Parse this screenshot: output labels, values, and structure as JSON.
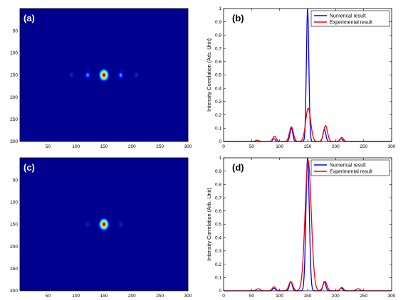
{
  "panels": [
    {
      "label": "(a)",
      "type": "heatmap"
    },
    {
      "label": "(b)",
      "type": "line"
    },
    {
      "label": "(c)",
      "type": "heatmap"
    },
    {
      "label": "(d)",
      "type": "line"
    }
  ],
  "chart_data": [
    {
      "type": "heatmap",
      "panel": "(a)",
      "xticks": [
        50,
        100,
        150,
        200,
        250,
        300
      ],
      "yticks": [
        50,
        100,
        150,
        200,
        250,
        300
      ],
      "xlim": [
        0,
        300
      ],
      "ylim": [
        0,
        300
      ],
      "colormap": [
        "#00008f",
        "#0000ff",
        "#00ffff",
        "#ffff00",
        "#ff0000",
        "#800000"
      ],
      "background": "#00008f",
      "spots": [
        {
          "x": 150,
          "y": 150,
          "intensity": 1.0
        },
        {
          "x": 121,
          "y": 150,
          "intensity": 0.38
        },
        {
          "x": 180,
          "y": 150,
          "intensity": 0.36
        },
        {
          "x": 92,
          "y": 150,
          "intensity": 0.13
        },
        {
          "x": 208,
          "y": 150,
          "intensity": 0.12
        }
      ]
    },
    {
      "type": "line",
      "panel": "(b)",
      "ylabel": "Intensity Correlation (Arb. Unit)",
      "xlim": [
        0,
        300
      ],
      "ylim": [
        0,
        1
      ],
      "xticks": [
        0,
        50,
        100,
        150,
        200,
        250,
        300
      ],
      "yticks": [
        0,
        0.1,
        0.2,
        0.3,
        0.4,
        0.5,
        0.6,
        0.7,
        0.8,
        0.9,
        1
      ],
      "legend_position": "top-right",
      "series": [
        {
          "name": "Numerical result",
          "color": "#0000ff",
          "peaks": [
            {
              "x": 150,
              "y": 1.0,
              "width": 2.2
            },
            {
              "x": 121,
              "y": 0.1,
              "width": 2.5
            },
            {
              "x": 180,
              "y": 0.09,
              "width": 2.5
            },
            {
              "x": 90,
              "y": 0.02,
              "width": 2.5
            },
            {
              "x": 210,
              "y": 0.02,
              "width": 2.5
            }
          ]
        },
        {
          "name": "Experimental result",
          "color": "#ff0000",
          "peaks": [
            {
              "x": 151,
              "y": 0.25,
              "width": 4.5
            },
            {
              "x": 121,
              "y": 0.11,
              "width": 3.5
            },
            {
              "x": 182,
              "y": 0.12,
              "width": 3.5
            },
            {
              "x": 91,
              "y": 0.04,
              "width": 3.0
            },
            {
              "x": 211,
              "y": 0.03,
              "width": 3.0
            },
            {
              "x": 60,
              "y": 0.01,
              "width": 3.0
            }
          ]
        }
      ]
    },
    {
      "type": "heatmap",
      "panel": "(c)",
      "xticks": [
        50,
        100,
        150,
        200,
        250,
        300
      ],
      "yticks": [
        50,
        100,
        150,
        200,
        250,
        300
      ],
      "xlim": [
        0,
        300
      ],
      "ylim": [
        0,
        300
      ],
      "colormap": [
        "#00008f",
        "#0000ff",
        "#00ffff",
        "#ffff00",
        "#ff0000",
        "#800000"
      ],
      "background": "#00008f",
      "spots": [
        {
          "x": 150,
          "y": 150,
          "intensity": 1.0
        },
        {
          "x": 121,
          "y": 150,
          "intensity": 0.12
        },
        {
          "x": 180,
          "y": 150,
          "intensity": 0.12
        }
      ]
    },
    {
      "type": "line",
      "panel": "(d)",
      "ylabel": "Intensity Correlation (Arb. Unit)",
      "xlim": [
        0,
        300
      ],
      "ylim": [
        0,
        1
      ],
      "xticks": [
        0,
        50,
        100,
        150,
        200,
        250,
        300
      ],
      "yticks": [
        0,
        0.1,
        0.2,
        0.3,
        0.4,
        0.5,
        0.6,
        0.7,
        0.8,
        0.9,
        1
      ],
      "legend_position": "top-right",
      "series": [
        {
          "name": "Numerical result",
          "color": "#0000ff",
          "peaks": [
            {
              "x": 150,
              "y": 1.0,
              "width": 3.0
            },
            {
              "x": 120,
              "y": 0.07,
              "width": 2.5
            },
            {
              "x": 180,
              "y": 0.07,
              "width": 2.5
            },
            {
              "x": 90,
              "y": 0.02,
              "width": 2.5
            },
            {
              "x": 210,
              "y": 0.02,
              "width": 2.5
            }
          ]
        },
        {
          "name": "Experimental result",
          "color": "#ff0000",
          "peaks": [
            {
              "x": 151,
              "y": 0.98,
              "width": 5.5
            },
            {
              "x": 120,
              "y": 0.07,
              "width": 3.5
            },
            {
              "x": 181,
              "y": 0.07,
              "width": 3.5
            },
            {
              "x": 90,
              "y": 0.03,
              "width": 3.0
            },
            {
              "x": 211,
              "y": 0.025,
              "width": 3.0
            },
            {
              "x": 62,
              "y": 0.015,
              "width": 3.5
            },
            {
              "x": 240,
              "y": 0.015,
              "width": 3.5
            }
          ]
        }
      ]
    }
  ]
}
